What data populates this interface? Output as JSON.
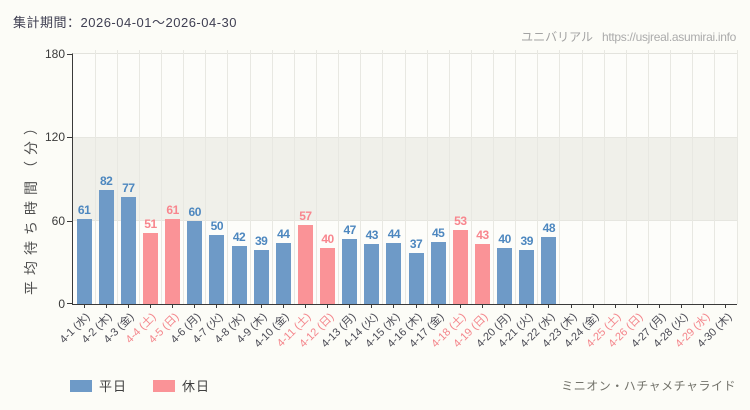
{
  "header": {
    "period": "集計期間：2026-04-01～2026-04-30",
    "site_name": "ユニバリアル",
    "site_url": "https://usjreal.asumirai.info"
  },
  "chart_data": {
    "type": "bar",
    "title": "",
    "xlabel": "",
    "ylabel": "平均待ち時間（分）",
    "ylim": [
      0,
      180
    ],
    "yticks": [
      0,
      60,
      120,
      180
    ],
    "shaded_band": [
      60,
      120
    ],
    "grid": "vertical",
    "legend_position": "bottom-left",
    "categories": [
      "4-1 (水)",
      "4-2 (木)",
      "4-3 (金)",
      "4-4 (土)",
      "4-5 (日)",
      "4-6 (月)",
      "4-7 (火)",
      "4-8 (水)",
      "4-9 (木)",
      "4-10 (金)",
      "4-11 (土)",
      "4-12 (日)",
      "4-13 (月)",
      "4-14 (火)",
      "4-15 (水)",
      "4-16 (木)",
      "4-17 (金)",
      "4-18 (土)",
      "4-19 (日)",
      "4-20 (月)",
      "4-21 (火)",
      "4-22 (水)",
      "4-23 (木)",
      "4-24 (金)",
      "4-25 (土)",
      "4-26 (日)",
      "4-27 (月)",
      "4-28 (火)",
      "4-29 (水)",
      "4-30 (木)"
    ],
    "day_types": [
      "weekday",
      "weekday",
      "weekday",
      "holiday",
      "holiday",
      "weekday",
      "weekday",
      "weekday",
      "weekday",
      "weekday",
      "holiday",
      "holiday",
      "weekday",
      "weekday",
      "weekday",
      "weekday",
      "weekday",
      "holiday",
      "holiday",
      "weekday",
      "weekday",
      "weekday",
      "weekday",
      "weekday",
      "holiday",
      "holiday",
      "weekday",
      "weekday",
      "holiday",
      "weekday"
    ],
    "values": [
      61,
      82,
      77,
      51,
      61,
      60,
      50,
      42,
      39,
      44,
      57,
      40,
      47,
      43,
      44,
      37,
      45,
      53,
      43,
      40,
      39,
      48,
      null,
      null,
      null,
      null,
      null,
      null,
      null,
      null
    ],
    "series_colors": {
      "weekday": "#6e9ac7",
      "holiday": "#fa9397"
    },
    "value_label_colors": {
      "weekday": "#4d87bf",
      "holiday": "#f8868e"
    }
  },
  "legend": {
    "items": [
      {
        "label": "平日",
        "key": "weekday"
      },
      {
        "label": "休日",
        "key": "holiday"
      }
    ]
  },
  "footer": {
    "attraction_name": "ミニオン・ハチャメチャライド"
  }
}
